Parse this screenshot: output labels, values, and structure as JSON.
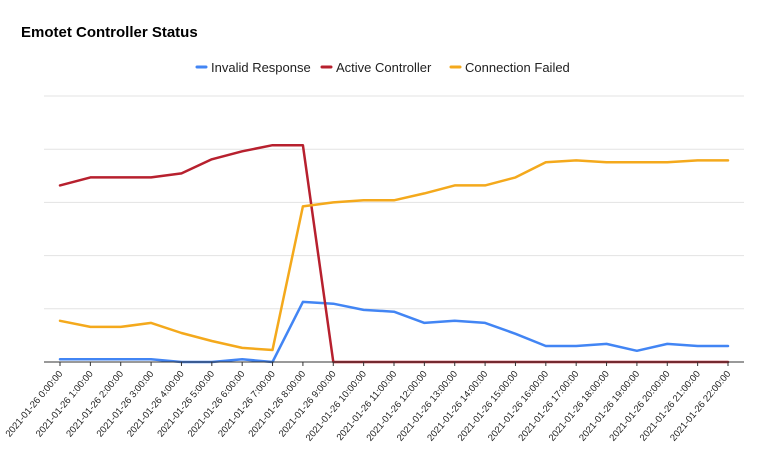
{
  "chart_data": {
    "type": "line",
    "title": "Emotet Controller Status",
    "xlabel": "",
    "ylabel": "",
    "ylim": [
      0,
      100
    ],
    "grid": true,
    "legend_position": "top",
    "x": [
      "2021-01-26 0:00:00",
      "2021-01-26 1:00:00",
      "2021-01-26 2:00:00",
      "2021-01-26 3:00:00",
      "2021-01-26 4:00:00",
      "2021-01-26 5:00:00",
      "2021-01-26 6:00:00",
      "2021-01-26 7:00:00",
      "2021-01-26 8:00:00",
      "2021-01-26 9:00:00",
      "2021-01-26 10:00:00",
      "2021-01-26 11:00:00",
      "2021-01-26 12:00:00",
      "2021-01-26 13:00:00",
      "2021-01-26 14:00:00",
      "2021-01-26 15:00:00",
      "2021-01-26 16:00:00",
      "2021-01-26 17:00:00",
      "2021-01-26 18:00:00",
      "2021-01-26 19:00:00",
      "2021-01-26 20:00:00",
      "2021-01-26 21:00:00",
      "2021-01-26 22:00:00"
    ],
    "series": [
      {
        "name": "Invalid Response",
        "color": "#4285f4",
        "values": [
          1,
          1,
          1,
          1,
          0,
          0,
          1,
          0,
          22.6,
          21.9,
          19.6,
          18.9,
          14.7,
          15.5,
          14.7,
          10.6,
          6,
          6,
          6.8,
          4.2,
          6.8,
          6,
          6
        ]
      },
      {
        "name": "Active Controller",
        "color": "#b7202e",
        "values": [
          66.4,
          69.4,
          69.4,
          69.4,
          70.9,
          76.2,
          79.2,
          81.5,
          81.5,
          0,
          0,
          0,
          0,
          0,
          0,
          0,
          0,
          0,
          0,
          0,
          0,
          0,
          0
        ]
      },
      {
        "name": "Connection Failed",
        "color": "#f4a91c",
        "values": [
          15.5,
          13.2,
          13.2,
          14.7,
          10.9,
          7.9,
          5.3,
          4.5,
          58.5,
          60,
          60.8,
          60.8,
          63.4,
          66.4,
          66.4,
          69.4,
          75.1,
          75.8,
          75.1,
          75.1,
          75.1,
          75.8,
          75.8
        ]
      }
    ]
  }
}
